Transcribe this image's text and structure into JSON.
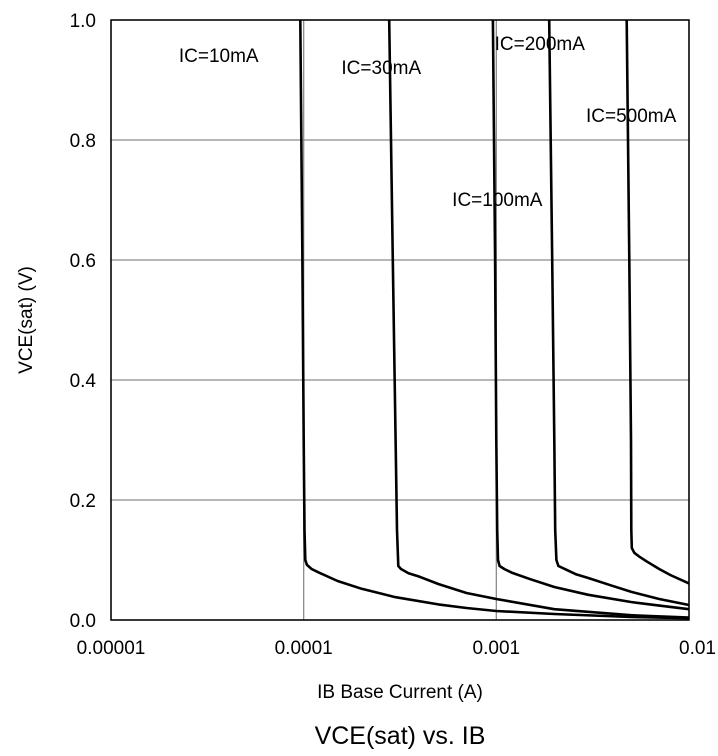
{
  "chart_data": {
    "type": "line",
    "title": "VCE(sat) vs. IB",
    "xlabel": "IB Base Current (A)",
    "ylabel": "VCE(sat) (V)",
    "xscale": "log",
    "xlim": [
      1e-05,
      0.01
    ],
    "ylim": [
      0.0,
      1.0
    ],
    "x_ticks": [
      "0.00001",
      "0.0001",
      "0.001",
      "0.01"
    ],
    "y_ticks": [
      "0.0",
      "0.2",
      "0.4",
      "0.6",
      "0.8",
      "1.0"
    ],
    "grid": true,
    "series": [
      {
        "name": "IC=10mA",
        "x": [
          9.6e-05,
          9.85e-05,
          0.0001,
          0.000101,
          0.000102,
          0.000104,
          0.00011,
          0.00012,
          0.00015,
          0.0002,
          0.0003,
          0.0005,
          0.0007,
          0.001,
          0.002,
          0.005,
          0.01
        ],
        "y": [
          1.0,
          0.6,
          0.3,
          0.15,
          0.1,
          0.092,
          0.085,
          0.079,
          0.065,
          0.052,
          0.038,
          0.026,
          0.02,
          0.015,
          0.01,
          0.005,
          0.003
        ]
      },
      {
        "name": "IC=30mA",
        "x": [
          0.000278,
          0.00029,
          0.0003,
          0.000305,
          0.00031,
          0.00032,
          0.00035,
          0.0004,
          0.0005,
          0.0007,
          0.001,
          0.002,
          0.005,
          0.01
        ],
        "y": [
          1.0,
          0.6,
          0.3,
          0.15,
          0.09,
          0.085,
          0.078,
          0.072,
          0.06,
          0.045,
          0.035,
          0.018,
          0.008,
          0.004
        ]
      },
      {
        "name": "IC=100mA",
        "x": [
          0.00096,
          0.000985,
          0.001,
          0.00101,
          0.00102,
          0.00104,
          0.0011,
          0.0012,
          0.0015,
          0.002,
          0.003,
          0.005,
          0.007,
          0.01
        ],
        "y": [
          1.0,
          0.6,
          0.3,
          0.15,
          0.1,
          0.09,
          0.085,
          0.079,
          0.068,
          0.055,
          0.042,
          0.03,
          0.024,
          0.018
        ]
      },
      {
        "name": "IC=200mA",
        "x": [
          0.00188,
          0.00195,
          0.002,
          0.00202,
          0.00205,
          0.0021,
          0.0023,
          0.0026,
          0.003,
          0.004,
          0.005,
          0.007,
          0.01
        ],
        "y": [
          1.0,
          0.6,
          0.3,
          0.15,
          0.1,
          0.09,
          0.084,
          0.076,
          0.07,
          0.057,
          0.047,
          0.035,
          0.025
        ]
      },
      {
        "name": "IC=500mA",
        "x": [
          0.00475,
          0.0049,
          0.005,
          0.00502,
          0.00505,
          0.0052,
          0.0055,
          0.006,
          0.007,
          0.008,
          0.01
        ],
        "y": [
          1.0,
          0.6,
          0.3,
          0.15,
          0.12,
          0.112,
          0.106,
          0.098,
          0.085,
          0.075,
          0.061
        ]
      }
    ],
    "annotations": [
      {
        "text": "IC=10mA",
        "x": 2.25e-05,
        "y": 0.93
      },
      {
        "text": "IC=30mA",
        "x": 0.000157,
        "y": 0.91
      },
      {
        "text": "IC=100mA",
        "x": 0.00059,
        "y": 0.69
      },
      {
        "text": "IC=200mA",
        "x": 0.00098,
        "y": 0.95
      },
      {
        "text": "IC=500mA",
        "x": 0.00292,
        "y": 0.83
      }
    ]
  }
}
